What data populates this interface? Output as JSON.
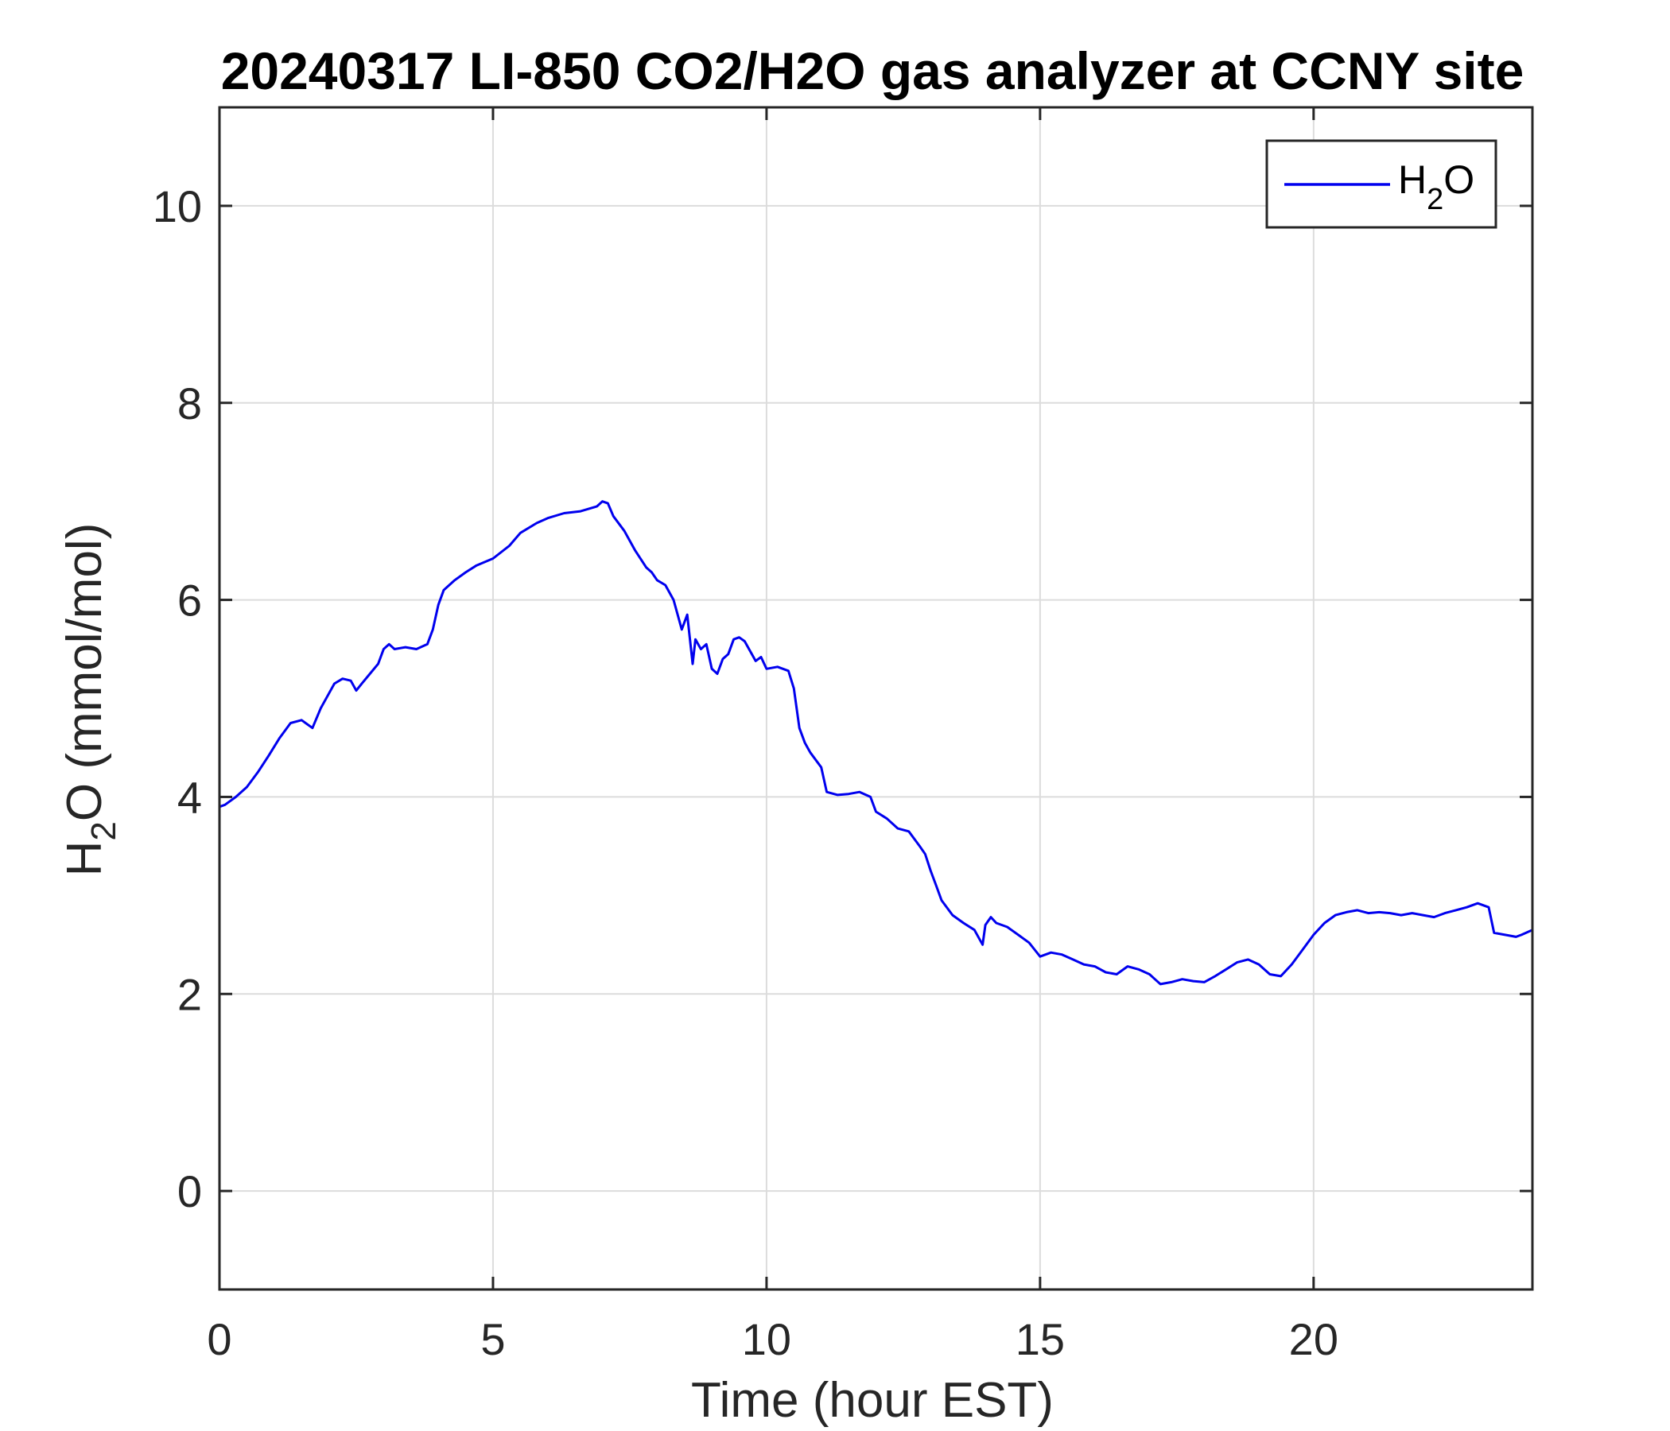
{
  "chart_data": {
    "type": "line",
    "title": "20240317 LI-850 CO2/H2O gas analyzer at CCNY site",
    "xlabel": "Time (hour EST)",
    "ylabel": "H2O (mmol/mol)",
    "ylabel_parts": {
      "pre": "H",
      "sub": "2",
      "post": "O (mmol/mol)"
    },
    "xlim": [
      0,
      24
    ],
    "ylim": [
      -1,
      11
    ],
    "xticks": [
      0,
      5,
      10,
      15,
      20
    ],
    "yticks": [
      0,
      2,
      4,
      6,
      8,
      10
    ],
    "grid": true,
    "legend_position": "top-right",
    "legend": {
      "pre": "H",
      "sub": "2",
      "post": "O"
    },
    "series": [
      {
        "name": "H2O",
        "color": "#0000ee",
        "x": [
          0.0,
          0.1,
          0.3,
          0.5,
          0.7,
          0.9,
          1.1,
          1.3,
          1.5,
          1.7,
          1.85,
          2.0,
          2.1,
          2.25,
          2.4,
          2.5,
          2.6,
          2.75,
          2.9,
          3.0,
          3.1,
          3.2,
          3.4,
          3.6,
          3.8,
          3.9,
          4.0,
          4.1,
          4.3,
          4.5,
          4.7,
          5.0,
          5.3,
          5.5,
          5.8,
          6.0,
          6.3,
          6.6,
          6.9,
          7.0,
          7.1,
          7.2,
          7.4,
          7.6,
          7.8,
          7.9,
          8.0,
          8.15,
          8.3,
          8.45,
          8.55,
          8.65,
          8.7,
          8.8,
          8.9,
          9.0,
          9.1,
          9.2,
          9.3,
          9.4,
          9.5,
          9.6,
          9.7,
          9.8,
          9.9,
          10.0,
          10.2,
          10.4,
          10.5,
          10.6,
          10.7,
          10.8,
          11.0,
          11.1,
          11.3,
          11.5,
          11.7,
          11.9,
          12.0,
          12.2,
          12.4,
          12.6,
          12.8,
          12.9,
          13.0,
          13.1,
          13.2,
          13.4,
          13.6,
          13.8,
          13.95,
          14.0,
          14.1,
          14.2,
          14.4,
          14.6,
          14.8,
          14.9,
          15.0,
          15.2,
          15.4,
          15.6,
          15.8,
          16.0,
          16.2,
          16.4,
          16.6,
          16.8,
          17.0,
          17.1,
          17.2,
          17.4,
          17.6,
          17.8,
          18.0,
          18.2,
          18.4,
          18.6,
          18.8,
          19.0,
          19.2,
          19.4,
          19.6,
          19.8,
          20.0,
          20.2,
          20.4,
          20.6,
          20.8,
          21.0,
          21.2,
          21.4,
          21.6,
          21.8,
          22.0,
          22.2,
          22.4,
          22.6,
          22.8,
          23.0,
          23.1,
          23.2,
          23.3,
          23.5,
          23.7,
          23.8,
          24.0
        ],
        "y": [
          3.9,
          3.92,
          4.0,
          4.1,
          4.25,
          4.42,
          4.6,
          4.75,
          4.78,
          4.7,
          4.9,
          5.05,
          5.15,
          5.2,
          5.18,
          5.08,
          5.15,
          5.25,
          5.35,
          5.5,
          5.55,
          5.5,
          5.52,
          5.5,
          5.55,
          5.7,
          5.95,
          6.1,
          6.2,
          6.28,
          6.35,
          6.42,
          6.55,
          6.68,
          6.78,
          6.83,
          6.88,
          6.9,
          6.95,
          7.0,
          6.98,
          6.85,
          6.7,
          6.5,
          6.33,
          6.28,
          6.2,
          6.15,
          6.0,
          5.7,
          5.85,
          5.35,
          5.6,
          5.5,
          5.55,
          5.3,
          5.25,
          5.4,
          5.45,
          5.6,
          5.62,
          5.58,
          5.48,
          5.38,
          5.42,
          5.3,
          5.32,
          5.28,
          5.1,
          4.7,
          4.55,
          4.45,
          4.3,
          4.05,
          4.02,
          4.03,
          4.05,
          4.0,
          3.85,
          3.78,
          3.68,
          3.65,
          3.5,
          3.42,
          3.25,
          3.1,
          2.95,
          2.8,
          2.72,
          2.65,
          2.5,
          2.7,
          2.78,
          2.72,
          2.68,
          2.6,
          2.52,
          2.45,
          2.38,
          2.42,
          2.4,
          2.35,
          2.3,
          2.28,
          2.22,
          2.2,
          2.28,
          2.25,
          2.2,
          2.15,
          2.1,
          2.12,
          2.15,
          2.13,
          2.12,
          2.18,
          2.25,
          2.32,
          2.35,
          2.3,
          2.2,
          2.18,
          2.3,
          2.45,
          2.6,
          2.72,
          2.8,
          2.83,
          2.85,
          2.82,
          2.83,
          2.82,
          2.8,
          2.82,
          2.8,
          2.78,
          2.82,
          2.85,
          2.88,
          2.92,
          2.9,
          2.88,
          2.62,
          2.6,
          2.58,
          2.6,
          2.65
        ]
      }
    ]
  }
}
